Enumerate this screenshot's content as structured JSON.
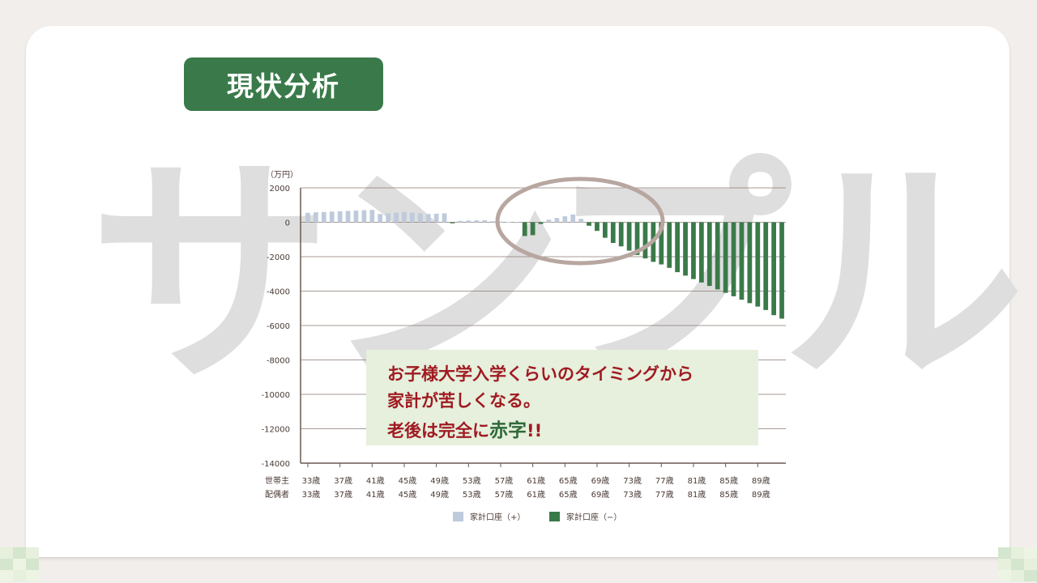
{
  "page": {
    "title": "現状分析",
    "watermark": "サンプル"
  },
  "colors": {
    "accent_green": "#3a7a4a",
    "positive_bar": "#bfcbdc",
    "negative_bar": "#3a7a4a",
    "callout_text": "#a01a22",
    "highlight_circle": "#b8a6a0"
  },
  "callout": {
    "line1": "お子様大学入学くらいのタイミングから",
    "line2": "家計が苦しくなる。",
    "line3_prefix": "老後は完全に",
    "line3_highlight": "赤字",
    "line3_suffix": "!!"
  },
  "chart_data": {
    "type": "bar",
    "unit_label": "（万円）",
    "ylim": [
      -14000,
      2000
    ],
    "yticks": [
      "2000",
      "0",
      "-2000",
      "-4000",
      "-6000",
      "-8000",
      "-10000",
      "-12000",
      "-14000"
    ],
    "row_labels": [
      "世帯主",
      "配偶者"
    ],
    "age_start": 33,
    "x_tick_labels": [
      "33歳",
      "37歳",
      "41歳",
      "45歳",
      "49歳",
      "53歳",
      "57歳",
      "61歳",
      "65歳",
      "69歳",
      "73歳",
      "77歳",
      "81歳",
      "85歳",
      "89歳"
    ],
    "values": [
      550,
      580,
      600,
      620,
      640,
      660,
      680,
      700,
      720,
      480,
      520,
      560,
      600,
      560,
      520,
      480,
      500,
      520,
      -60,
      80,
      100,
      110,
      120,
      60,
      40,
      20,
      10,
      -800,
      -750,
      -100,
      150,
      250,
      350,
      450,
      200,
      -200,
      -500,
      -900,
      -1200,
      -1400,
      -1650,
      -1900,
      -2100,
      -2300,
      -2450,
      -2650,
      -2900,
      -3100,
      -3300,
      -3500,
      -3700,
      -3900,
      -4100,
      -4300,
      -4500,
      -4700,
      -4900,
      -5100,
      -5400,
      -5600
    ],
    "series": [
      {
        "name": "家計口座（+）",
        "color": "#bfcbdc"
      },
      {
        "name": "家計口座（−）",
        "color": "#3a7a4a"
      }
    ],
    "grid": true,
    "legend_position": "bottom"
  }
}
